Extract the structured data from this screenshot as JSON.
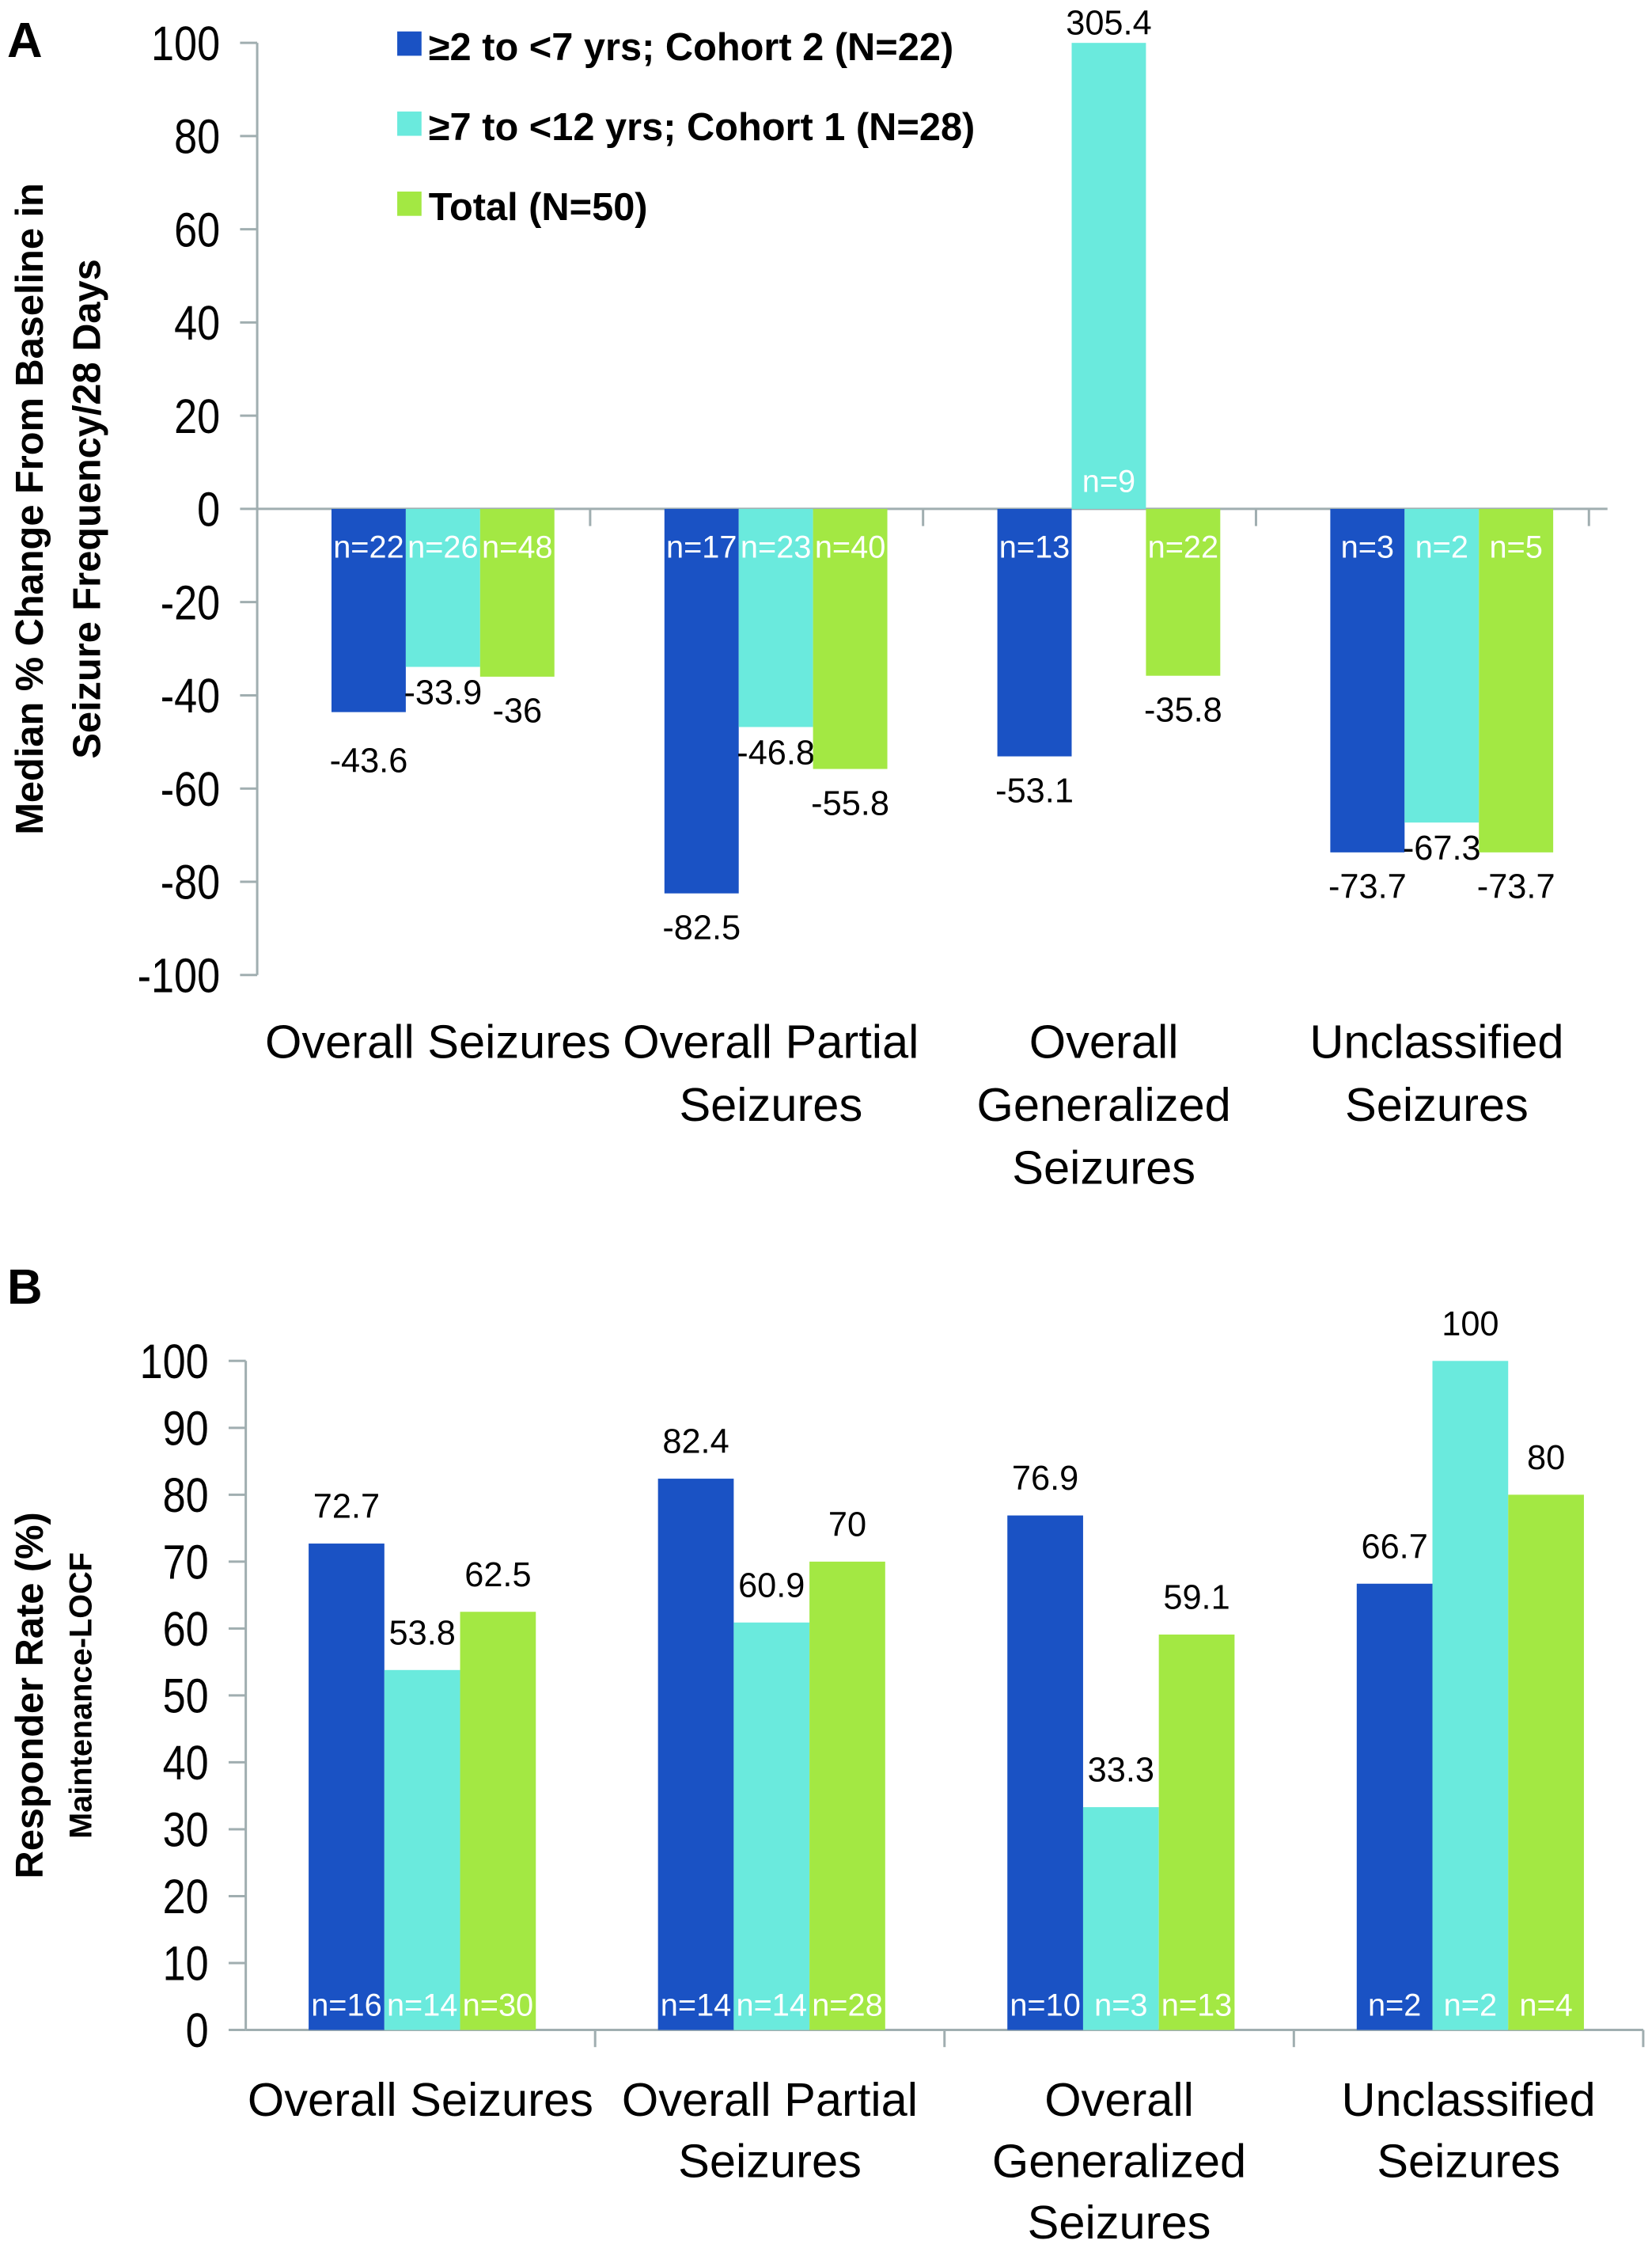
{
  "colors": {
    "cohort2": "#1a52c4",
    "cohort1": "#6aeadd",
    "total": "#a3e843",
    "axis": "#a0aeb0"
  },
  "chart_data": [
    {
      "panel": "A",
      "type": "bar",
      "ylabel_line1": "Median % Change From Baseline in",
      "ylabel_line2": "Seizure Frequency/28 Days",
      "ylim": [
        -100,
        100
      ],
      "yticks": [
        "100",
        "80",
        "60",
        "40",
        "20",
        "0",
        "-20",
        "-40",
        "-60",
        "-80",
        "-100"
      ],
      "categories": [
        [
          "Overall Seizures"
        ],
        [
          "Overall Partial",
          "Seizures"
        ],
        [
          "Overall",
          "Generalized",
          "Seizures"
        ],
        [
          "Unclassified",
          "Seizures"
        ]
      ],
      "legend": [
        {
          "label": "≥2 to <7 yrs; Cohort 2 (N=22)",
          "color": "#1a52c4"
        },
        {
          "label": "≥7 to <12 yrs; Cohort 1  (N=28)",
          "color": "#6aeadd"
        },
        {
          "label": "Total (N=50)",
          "color": "#a3e843"
        }
      ],
      "legend_position": "top-left",
      "series": [
        {
          "name": "≥2 to <7 yrs; Cohort 2 (N=22)",
          "values": [
            -43.6,
            -82.5,
            -53.1,
            -73.7
          ],
          "labels": [
            "-43.6",
            "-82.5",
            "-53.1",
            "-73.7"
          ],
          "n": [
            "n=22",
            "n=17",
            "n=13",
            "n=3"
          ]
        },
        {
          "name": "≥7 to <12 yrs; Cohort 1 (N=28)",
          "values": [
            -33.9,
            -46.8,
            305.4,
            -67.3
          ],
          "labels": [
            "-33.9",
            "-46.8",
            "305.4",
            "-67.3"
          ],
          "n": [
            "n=26",
            "n=23",
            "n=9",
            "n=2"
          ]
        },
        {
          "name": "Total (N=50)",
          "values": [
            -36,
            -55.8,
            -35.8,
            -73.7
          ],
          "labels": [
            "-36",
            "-55.8",
            "-35.8",
            "-73.7"
          ],
          "n": [
            "n=48",
            "n=40",
            "n=22",
            "n=5"
          ]
        }
      ],
      "note": "305.4 bar truncated at axis max 100"
    },
    {
      "panel": "B",
      "type": "bar",
      "ylabel_line1": "Responder Rate (%)",
      "ylabel_line2": "Maintenance-LOCF",
      "ylim": [
        0,
        100
      ],
      "yticks": [
        "100",
        "90",
        "80",
        "70",
        "60",
        "50",
        "40",
        "30",
        "20",
        "10",
        "0"
      ],
      "categories": [
        [
          "Overall Seizures"
        ],
        [
          "Overall Partial",
          "Seizures"
        ],
        [
          "Overall",
          "Generalized",
          "Seizures"
        ],
        [
          "Unclassified",
          "Seizures"
        ]
      ],
      "series": [
        {
          "name": "≥2 to <7 yrs; Cohort 2 (N=22)",
          "values": [
            72.7,
            82.4,
            76.9,
            66.7
          ],
          "labels": [
            "72.7",
            "82.4",
            "76.9",
            "66.7"
          ],
          "n": [
            "n=16",
            "n=14",
            "n=10",
            "n=2"
          ]
        },
        {
          "name": "≥7 to <12 yrs; Cohort 1 (N=28)",
          "values": [
            53.8,
            60.9,
            33.3,
            100
          ],
          "labels": [
            "53.8",
            "60.9",
            "33.3",
            "100"
          ],
          "n": [
            "n=14",
            "n=14",
            "n=3",
            "n=2"
          ]
        },
        {
          "name": "Total (N=50)",
          "values": [
            62.5,
            70,
            59.1,
            80
          ],
          "labels": [
            "62.5",
            "70",
            "59.1",
            "80"
          ],
          "n": [
            "n=30",
            "n=28",
            "n=13",
            "n=4"
          ]
        }
      ]
    }
  ]
}
